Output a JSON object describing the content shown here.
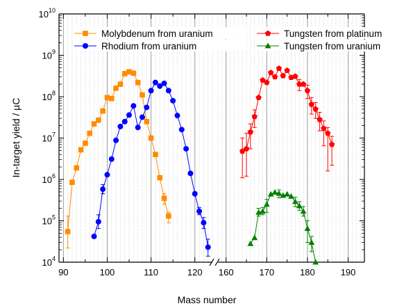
{
  "chart_data": {
    "type": "scatter",
    "xlabel": "Mass number",
    "ylabel": "In-target yield / µC",
    "y_scale": "log",
    "ylim": [
      10000,
      10000000000
    ],
    "x_axis_break": true,
    "x_segments": [
      {
        "range": [
          89,
          124
        ],
        "ticks": [
          90,
          100,
          110,
          120
        ]
      },
      {
        "range": [
          158,
          194
        ],
        "ticks": [
          160,
          170,
          180,
          190
        ]
      }
    ],
    "y_ticks": [
      {
        "value": 10000,
        "base": "10",
        "exp": "4"
      },
      {
        "value": 100000,
        "base": "10",
        "exp": "5"
      },
      {
        "value": 1000000,
        "base": "10",
        "exp": "6"
      },
      {
        "value": 10000000,
        "base": "10",
        "exp": "7"
      },
      {
        "value": 100000000,
        "base": "10",
        "exp": "8"
      },
      {
        "value": 1000000000,
        "base": "10",
        "exp": "9"
      },
      {
        "value": 10000000000,
        "base": "10",
        "exp": "10"
      }
    ],
    "grid": "vertical major solid, vertical minor dotted",
    "legend_position": "top",
    "series": [
      {
        "name": "Molybdenum from uranium",
        "color": "#ff8c00",
        "marker": "square",
        "segment": 0,
        "points": [
          [
            91,
            55000.0
          ],
          [
            92,
            850000.0
          ],
          [
            93,
            1900000.0
          ],
          [
            94,
            5200000.0
          ],
          [
            95,
            7500000.0
          ],
          [
            96,
            13000000.0
          ],
          [
            97,
            22000000.0
          ],
          [
            98,
            27000000.0
          ],
          [
            99,
            45000000.0
          ],
          [
            100,
            95000000.0
          ],
          [
            101,
            90000000.0
          ],
          [
            102,
            160000000.0
          ],
          [
            103,
            200000000.0
          ],
          [
            104,
            360000000.0
          ],
          [
            105,
            400000000.0
          ],
          [
            106,
            370000000.0
          ],
          [
            107,
            220000000.0
          ],
          [
            108,
            110000000.0
          ],
          [
            109,
            25000000.0
          ],
          [
            110,
            10000000.0
          ],
          [
            111,
            4000000.0
          ],
          [
            112,
            1100000.0
          ],
          [
            113,
            350000.0
          ],
          [
            114,
            130000.0
          ]
        ],
        "errors": {
          "91": [
            22000.0,
            130000.0
          ],
          "113": [
            250000.0,
            450000.0
          ],
          "114": [
            90000.0,
            160000.0
          ]
        }
      },
      {
        "name": "Rhodium from uranium",
        "color": "#0000ff",
        "marker": "circle",
        "segment": 0,
        "points": [
          [
            97,
            42000.0
          ],
          [
            98,
            95000.0
          ],
          [
            99,
            580000.0
          ],
          [
            100,
            1300000.0
          ],
          [
            101,
            3100000.0
          ],
          [
            102,
            8800000.0
          ],
          [
            103,
            19000000.0
          ],
          [
            104,
            25000000.0
          ],
          [
            105,
            36000000.0
          ],
          [
            106,
            60000000.0
          ],
          [
            107,
            18000000.0
          ],
          [
            108,
            32000000.0
          ],
          [
            109,
            55000000.0
          ],
          [
            110,
            140000000.0
          ],
          [
            111,
            220000000.0
          ],
          [
            112,
            180000000.0
          ],
          [
            113,
            210000000.0
          ],
          [
            114,
            140000000.0
          ],
          [
            115,
            80000000.0
          ],
          [
            116,
            35000000.0
          ],
          [
            117,
            16000000.0
          ],
          [
            118,
            5500000.0
          ],
          [
            119,
            1400000.0
          ],
          [
            120,
            450000.0
          ],
          [
            121,
            170000.0
          ],
          [
            122,
            90000.0
          ],
          [
            123,
            23000.0
          ]
        ],
        "errors": {
          "98": [
            65000.0,
            140000.0
          ],
          "99": [
            450000.0,
            750000.0
          ],
          "121": [
            140000.0,
            210000.0
          ],
          "122": [
            65000.0,
            120000.0
          ],
          "123": [
            14000.0,
            36000.0
          ]
        }
      },
      {
        "name": "Tungsten from platinum",
        "color": "#ff0000",
        "marker": "pentagon",
        "segment": 1,
        "points": [
          [
            164,
            4800000.0
          ],
          [
            165,
            5500000.0
          ],
          [
            166,
            14000000.0
          ],
          [
            167,
            33000000.0
          ],
          [
            168,
            95000000.0
          ],
          [
            169,
            250000000.0
          ],
          [
            170,
            220000000.0
          ],
          [
            171,
            380000000.0
          ],
          [
            172,
            300000000.0
          ],
          [
            173,
            480000000.0
          ],
          [
            174,
            320000000.0
          ],
          [
            175,
            430000000.0
          ],
          [
            176,
            290000000.0
          ],
          [
            177,
            310000000.0
          ],
          [
            178,
            200000000.0
          ],
          [
            179,
            200000000.0
          ],
          [
            180,
            140000000.0
          ],
          [
            181,
            65000000.0
          ],
          [
            182,
            50000000.0
          ],
          [
            183,
            28000000.0
          ],
          [
            184,
            17000000.0
          ],
          [
            185,
            13000000.0
          ],
          [
            186,
            7000000.0
          ]
        ],
        "errors": {
          "164": [
            1100000.0,
            10000000.0
          ],
          "165": [
            1200000.0,
            13000000.0
          ],
          "166": [
            5500000.0,
            22000000.0
          ],
          "167": [
            18000000.0,
            48000000.0
          ],
          "178": [
            140000000.0,
            260000000.0
          ],
          "180": [
            90000000.0,
            190000000.0
          ],
          "181": [
            38000000.0,
            95000000.0
          ],
          "182": [
            30000000.0,
            72000000.0
          ],
          "183": [
            15000000.0,
            42000000.0
          ],
          "184": [
            6500000.0,
            26000000.0
          ],
          "185": [
            1600000.0,
            18000000.0
          ],
          "186": [
            2200000.0,
            11000000.0
          ]
        }
      },
      {
        "name": "Tungsten from uranium",
        "color": "#008000",
        "marker": "triangle",
        "segment": 1,
        "points": [
          [
            166,
            28000.0
          ],
          [
            167,
            39000.0
          ],
          [
            168,
            160000.0
          ],
          [
            169,
            170000.0
          ],
          [
            170,
            250000.0
          ],
          [
            171,
            440000.0
          ],
          [
            172,
            490000.0
          ],
          [
            173,
            460000.0
          ],
          [
            174,
            410000.0
          ],
          [
            175,
            440000.0
          ],
          [
            176,
            390000.0
          ],
          [
            177,
            290000.0
          ],
          [
            178,
            230000.0
          ],
          [
            179,
            170000.0
          ],
          [
            180,
            65000.0
          ],
          [
            181,
            30000.0
          ],
          [
            182,
            10000.0
          ]
        ],
        "errors": {
          "168": [
            130000.0,
            200000.0
          ],
          "169": [
            140000.0,
            210000.0
          ],
          "170": [
            160000.0,
            330000.0
          ],
          "173": [
            360000.0,
            560000.0
          ],
          "177": [
            220000.0,
            370000.0
          ],
          "178": [
            180000.0,
            290000.0
          ],
          "179": [
            130000.0,
            220000.0
          ],
          "180": [
            30000.0,
            100000.0
          ],
          "181": [
            18000.0,
            42000.0
          ]
        }
      }
    ]
  }
}
